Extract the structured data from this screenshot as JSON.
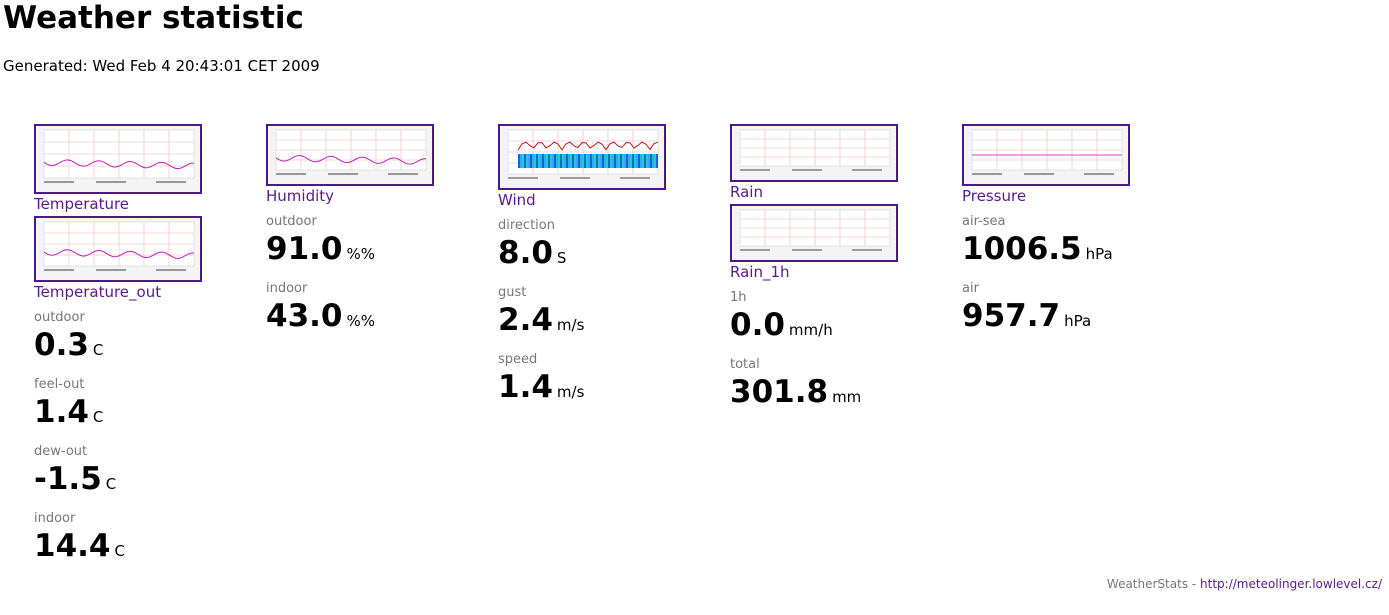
{
  "header": {
    "title": "Weather statistic",
    "generated": "Generated: Wed Feb 4 20:43:01 CET 2009"
  },
  "columns": [
    {
      "graphs": [
        "Temperature",
        "Temperature_out"
      ],
      "readings": [
        {
          "label": "outdoor",
          "value": "0.3",
          "unit": "C"
        },
        {
          "label": "feel-out",
          "value": "1.4",
          "unit": "C"
        },
        {
          "label": "dew-out",
          "value": "-1.5",
          "unit": "C"
        },
        {
          "label": "indoor",
          "value": "14.4",
          "unit": "C"
        }
      ]
    },
    {
      "graphs": [
        "Humidity"
      ],
      "readings": [
        {
          "label": "outdoor",
          "value": "91.0",
          "unit": "%%"
        },
        {
          "label": "indoor",
          "value": "43.0",
          "unit": "%%"
        }
      ]
    },
    {
      "graphs": [
        "Wind"
      ],
      "readings": [
        {
          "label": "direction",
          "value": "8.0",
          "unit": "S"
        },
        {
          "label": "gust",
          "value": "2.4",
          "unit": "m/s"
        },
        {
          "label": "speed",
          "value": "1.4",
          "unit": "m/s"
        }
      ]
    },
    {
      "graphs": [
        "Rain",
        "Rain_1h"
      ],
      "readings": [
        {
          "label": "1h",
          "value": "0.0",
          "unit": "mm/h"
        },
        {
          "label": "total",
          "value": "301.8",
          "unit": "mm"
        }
      ]
    },
    {
      "graphs": [
        "Pressure"
      ],
      "readings": [
        {
          "label": "air-sea",
          "value": "1006.5",
          "unit": "hPa"
        },
        {
          "label": "air",
          "value": "957.7",
          "unit": "hPa"
        }
      ]
    }
  ],
  "footer": {
    "text": "WeatherStats - ",
    "link": "http://meteolinger.lowlevel.cz/"
  }
}
